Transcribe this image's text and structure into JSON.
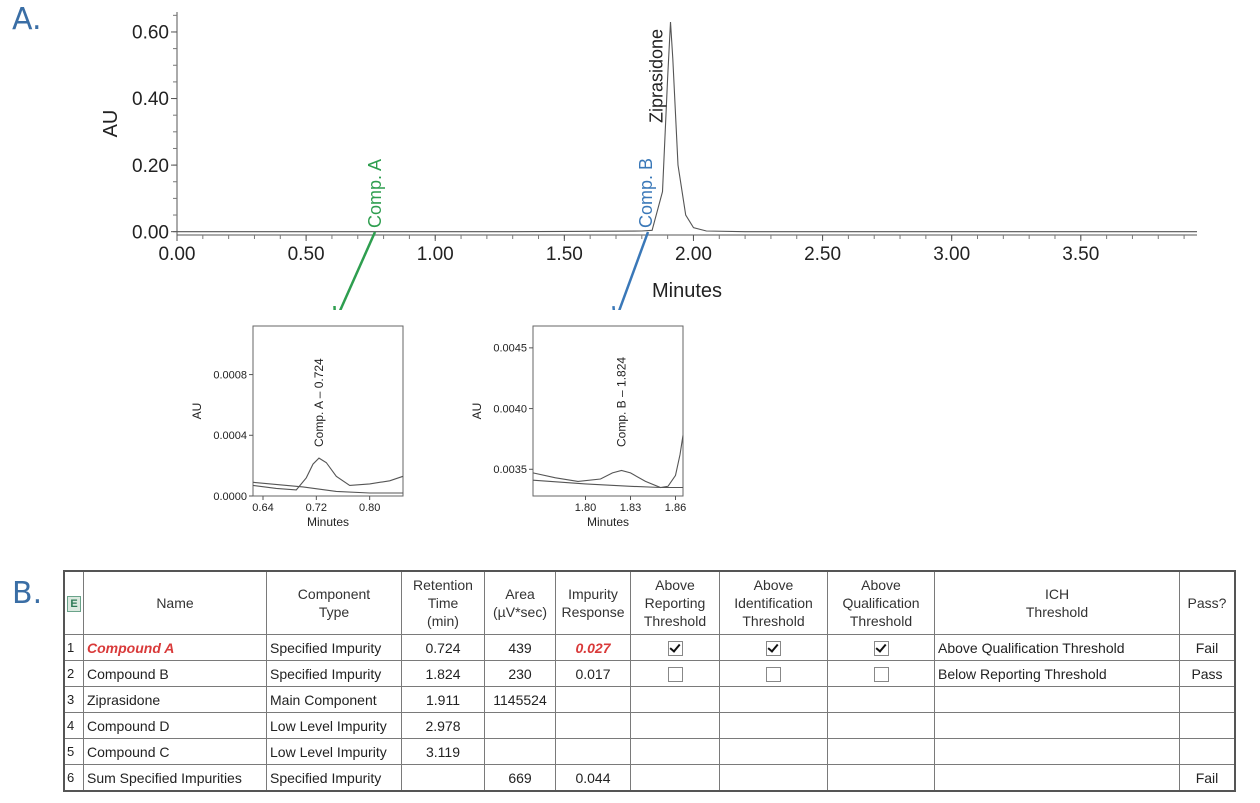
{
  "panel_a_label": "A.",
  "panel_b_label": "B.",
  "chart_data": [
    {
      "type": "line",
      "id": "main-chromatogram",
      "xlabel": "Minutes",
      "ylabel": "AU",
      "xlim": [
        0.0,
        3.95
      ],
      "ylim": [
        -0.01,
        0.66
      ],
      "x_ticks": [
        "0.00",
        "0.50",
        "1.00",
        "1.50",
        "2.00",
        "2.50",
        "3.00",
        "3.50"
      ],
      "y_ticks": [
        "0.00",
        "0.20",
        "0.40",
        "0.60"
      ],
      "x_tick_values": [
        0.0,
        0.5,
        1.0,
        1.5,
        2.0,
        2.5,
        3.0,
        3.5
      ],
      "y_tick_values": [
        0.0,
        0.2,
        0.4,
        0.6
      ],
      "series": [
        {
          "x": [
            0.0,
            1.3,
            1.6,
            1.8,
            1.84,
            1.88,
            1.9,
            1.911,
            1.92,
            1.94,
            1.97,
            2.0,
            2.05,
            2.2,
            3.95
          ],
          "y": [
            0.0,
            0.0,
            0.001,
            0.002,
            0.004,
            0.12,
            0.46,
            0.63,
            0.52,
            0.2,
            0.05,
            0.012,
            0.002,
            0.0,
            0.0
          ]
        }
      ],
      "annotations": [
        {
          "text": "Ziprasidone",
          "x": 1.911,
          "color": "#222222"
        },
        {
          "text": "Comp. A",
          "x": 0.724,
          "color": "#2e9e4f"
        },
        {
          "text": "Comp. B",
          "x": 1.824,
          "color": "#3a78b8"
        }
      ]
    },
    {
      "type": "line",
      "id": "inset-comp-a",
      "xlabel": "Minutes",
      "ylabel": "AU",
      "xlim": [
        0.625,
        0.85
      ],
      "ylim": [
        0.0,
        0.00112
      ],
      "x_ticks": [
        "0.64",
        "0.72",
        "0.80"
      ],
      "y_ticks": [
        "0.0000",
        "0.0004",
        "0.0008"
      ],
      "x_tick_values": [
        0.64,
        0.72,
        0.8
      ],
      "y_tick_values": [
        0.0,
        0.0004,
        0.0008
      ],
      "series": [
        {
          "x": [
            0.625,
            0.66,
            0.69,
            0.705,
            0.715,
            0.724,
            0.735,
            0.75,
            0.77,
            0.8,
            0.83,
            0.85
          ],
          "y": [
            7e-05,
            5e-05,
            4e-05,
            0.00012,
            0.00021,
            0.00025,
            0.00022,
            0.00013,
            7e-05,
            8e-05,
            0.0001,
            0.00013
          ]
        },
        {
          "x": [
            0.625,
            0.7,
            0.75,
            0.8,
            0.85
          ],
          "y": [
            9e-05,
            6e-05,
            3e-05,
            2e-05,
            2e-05
          ]
        }
      ],
      "annotations": [
        {
          "text": "Comp. A  –  0.724",
          "x": 0.724
        }
      ]
    },
    {
      "type": "line",
      "id": "inset-comp-b",
      "xlabel": "Minutes",
      "ylabel": "AU",
      "xlim": [
        1.765,
        1.865
      ],
      "ylim": [
        0.00328,
        0.00468
      ],
      "x_ticks": [
        "1.80",
        "1.83",
        "1.86"
      ],
      "y_ticks": [
        "0.0035",
        "0.0040",
        "0.0045"
      ],
      "x_tick_values": [
        1.8,
        1.83,
        1.86
      ],
      "y_tick_values": [
        0.0035,
        0.004,
        0.0045
      ],
      "series": [
        {
          "x": [
            1.765,
            1.78,
            1.795,
            1.81,
            1.818,
            1.824,
            1.83,
            1.84,
            1.85,
            1.855,
            1.86,
            1.863,
            1.865
          ],
          "y": [
            0.00347,
            0.00343,
            0.0034,
            0.00342,
            0.00347,
            0.00349,
            0.00347,
            0.0034,
            0.00335,
            0.00336,
            0.00345,
            0.00362,
            0.00378
          ]
        },
        {
          "x": [
            1.765,
            1.8,
            1.83,
            1.85,
            1.865
          ],
          "y": [
            0.00341,
            0.00338,
            0.00336,
            0.00335,
            0.00335
          ]
        }
      ],
      "annotations": [
        {
          "text": "Comp. B  – 1.824",
          "x": 1.824
        }
      ]
    }
  ],
  "table": {
    "corner_icon": "E",
    "headers": [
      "",
      "Name",
      "Component\nType",
      "Retention\nTime\n(min)",
      "Area\n(µV*sec)",
      "Impurity\nResponse",
      "Above\nReporting\nThreshold",
      "Above\nIdentification\nThreshold",
      "Above\nQualification\nThreshold",
      "ICH\nThreshold",
      "Pass?"
    ],
    "rows": [
      {
        "num": "1",
        "name": "Compound A",
        "type": "Specified Impurity",
        "rt": "0.724",
        "area": "439",
        "resp": "0.027",
        "rep": "checked",
        "ident": "checked",
        "qual": "checked",
        "ich": "Above Qualification Threshold",
        "pass": "Fail",
        "highlight": true
      },
      {
        "num": "2",
        "name": "Compound B",
        "type": "Specified Impurity",
        "rt": "1.824",
        "area": "230",
        "resp": "0.017",
        "rep": "unchecked",
        "ident": "unchecked",
        "qual": "unchecked",
        "ich": "Below Reporting Threshold",
        "pass": "Pass",
        "highlight": false
      },
      {
        "num": "3",
        "name": "Ziprasidone",
        "type": "Main Component",
        "rt": "1.911",
        "area": "1145524",
        "resp": "",
        "rep": "",
        "ident": "",
        "qual": "",
        "ich": "",
        "pass": "",
        "highlight": false
      },
      {
        "num": "4",
        "name": "Compound D",
        "type": "Low Level Impurity",
        "rt": "2.978",
        "area": "",
        "resp": "",
        "rep": "",
        "ident": "",
        "qual": "",
        "ich": "",
        "pass": "",
        "highlight": false
      },
      {
        "num": "5",
        "name": "Compound C",
        "type": "Low Level Impurity",
        "rt": "3.119",
        "area": "",
        "resp": "",
        "rep": "",
        "ident": "",
        "qual": "",
        "ich": "",
        "pass": "",
        "highlight": false
      },
      {
        "num": "6",
        "name": "Sum Specified Impurities",
        "type": "Specified Impurity",
        "rt": "",
        "area": "669",
        "resp": "0.044",
        "rep": "",
        "ident": "",
        "qual": "",
        "ich": "",
        "pass": "Fail",
        "highlight": false
      }
    ]
  }
}
